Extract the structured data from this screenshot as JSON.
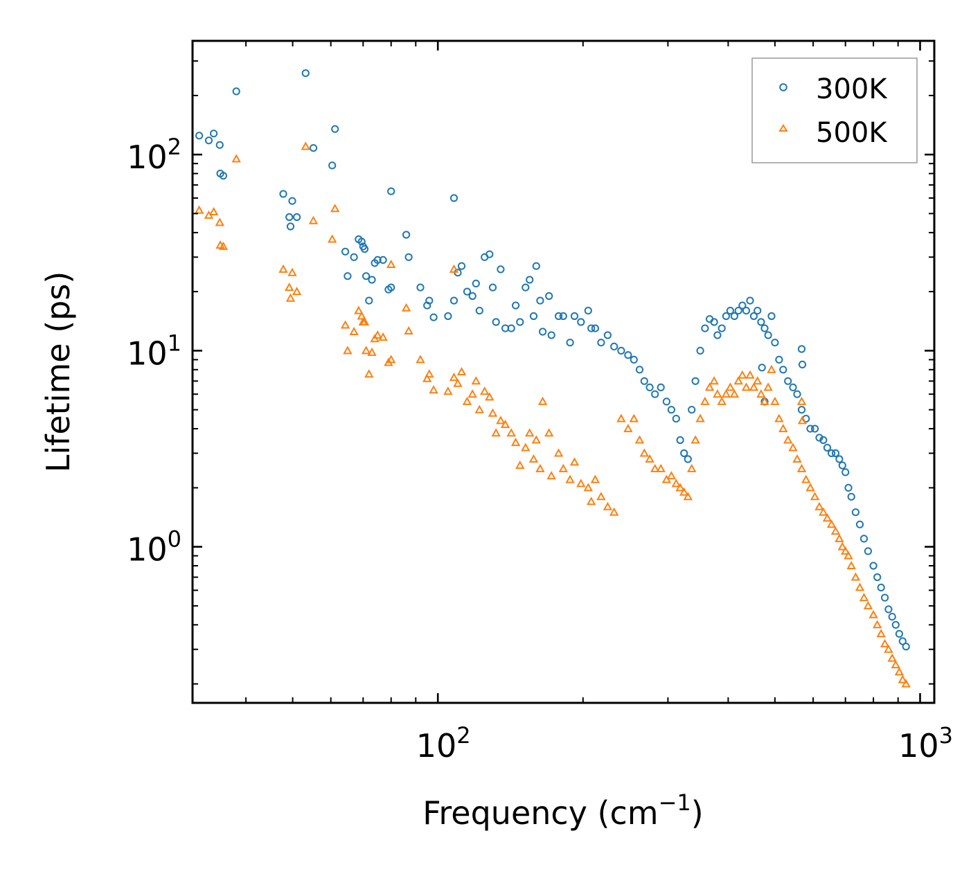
{
  "chart_data": {
    "type": "scatter",
    "title": "",
    "xlabel": "Frequency (cm",
    "xlabel_sup": "−1",
    "xlabel_suffix": ")",
    "ylabel": "Lifetime (ps)",
    "xscale": "log",
    "yscale": "log",
    "xlim": [
      31,
      1070
    ],
    "ylim": [
      0.16,
      380
    ],
    "x_ticks": [
      {
        "value": 100,
        "base": "10",
        "exp": "2"
      },
      {
        "value": 1000,
        "base": "10",
        "exp": "3"
      }
    ],
    "y_ticks": [
      {
        "value": 1,
        "base": "10",
        "exp": "0"
      },
      {
        "value": 10,
        "base": "10",
        "exp": "1"
      },
      {
        "value": 100,
        "base": "10",
        "exp": "2"
      }
    ],
    "legend_position": "top-right",
    "series": [
      {
        "name": "300K",
        "marker": "circle",
        "color": "#1f77b4",
        "points": [
          [
            32,
            125
          ],
          [
            33.5,
            118
          ],
          [
            34.3,
            128
          ],
          [
            35.3,
            112
          ],
          [
            35.4,
            80
          ],
          [
            35.9,
            78
          ],
          [
            38.2,
            210
          ],
          [
            47.8,
            63
          ],
          [
            49.2,
            48
          ],
          [
            49.5,
            43
          ],
          [
            49.9,
            58
          ],
          [
            51,
            48
          ],
          [
            53.2,
            260
          ],
          [
            55.2,
            108
          ],
          [
            60.4,
            88
          ],
          [
            61.2,
            135
          ],
          [
            80,
            65
          ],
          [
            108,
            60
          ],
          [
            64.3,
            32
          ],
          [
            65,
            24
          ],
          [
            67,
            30
          ],
          [
            68.5,
            37
          ],
          [
            69.5,
            36
          ],
          [
            70,
            34
          ],
          [
            70.5,
            33
          ],
          [
            71,
            24
          ],
          [
            72,
            18
          ],
          [
            73,
            23
          ],
          [
            74,
            28
          ],
          [
            75,
            29
          ],
          [
            77,
            29
          ],
          [
            79,
            20.5
          ],
          [
            80,
            21
          ],
          [
            86,
            39
          ],
          [
            87,
            30
          ],
          [
            92,
            21
          ],
          [
            95,
            17
          ],
          [
            96,
            18
          ],
          [
            98,
            14.8
          ],
          [
            105,
            15
          ],
          [
            108,
            18
          ],
          [
            110,
            25
          ],
          [
            112,
            27
          ],
          [
            115,
            20
          ],
          [
            118,
            19
          ],
          [
            120,
            22
          ],
          [
            122,
            16
          ],
          [
            125,
            30
          ],
          [
            128,
            31
          ],
          [
            130,
            21
          ],
          [
            132,
            14
          ],
          [
            135,
            26
          ],
          [
            138,
            13
          ],
          [
            142,
            13
          ],
          [
            145,
            17
          ],
          [
            148,
            14
          ],
          [
            152,
            21
          ],
          [
            155,
            23
          ],
          [
            158,
            15
          ],
          [
            160,
            27
          ],
          [
            163,
            18
          ],
          [
            165,
            12.5
          ],
          [
            170,
            19
          ],
          [
            172,
            12
          ],
          [
            178,
            15
          ],
          [
            182,
            15
          ],
          [
            188,
            11
          ],
          [
            192,
            15
          ],
          [
            198,
            14
          ],
          [
            205,
            16
          ],
          [
            208,
            13
          ],
          [
            212,
            13
          ],
          [
            218,
            11
          ],
          [
            225,
            12
          ],
          [
            232,
            10.5
          ],
          [
            240,
            10
          ],
          [
            248,
            9.5
          ],
          [
            255,
            9
          ],
          [
            262,
            8
          ],
          [
            268,
            7
          ],
          [
            275,
            6.5
          ],
          [
            282,
            6
          ],
          [
            290,
            6.5
          ],
          [
            298,
            5.5
          ],
          [
            305,
            5
          ],
          [
            312,
            4.5
          ],
          [
            318,
            3.5
          ],
          [
            324,
            3
          ],
          [
            330,
            2.8
          ],
          [
            336,
            5
          ],
          [
            342,
            7
          ],
          [
            350,
            10
          ],
          [
            358,
            13
          ],
          [
            366,
            14.5
          ],
          [
            374,
            14
          ],
          [
            380,
            12
          ],
          [
            388,
            13
          ],
          [
            396,
            15
          ],
          [
            404,
            16
          ],
          [
            412,
            15
          ],
          [
            420,
            16
          ],
          [
            428,
            17
          ],
          [
            436,
            16
          ],
          [
            444,
            18
          ],
          [
            452,
            15
          ],
          [
            460,
            16
          ],
          [
            468,
            14
          ],
          [
            476,
            13
          ],
          [
            484,
            12
          ],
          [
            492,
            15
          ],
          [
            500,
            11
          ],
          [
            510,
            9
          ],
          [
            520,
            8
          ],
          [
            532,
            7
          ],
          [
            545,
            6.5
          ],
          [
            556,
            6
          ],
          [
            568,
            5
          ],
          [
            580,
            4.5
          ],
          [
            592,
            4
          ],
          [
            605,
            4
          ],
          [
            618,
            3.6
          ],
          [
            630,
            3.5
          ],
          [
            642,
            3.2
          ],
          [
            655,
            3
          ],
          [
            668,
            3
          ],
          [
            680,
            2.8
          ],
          [
            690,
            2.6
          ],
          [
            700,
            2.4
          ],
          [
            710,
            2
          ],
          [
            720,
            1.8
          ],
          [
            735,
            1.5
          ],
          [
            750,
            1.3
          ],
          [
            765,
            1.1
          ],
          [
            780,
            0.95
          ],
          [
            800,
            0.8
          ],
          [
            815,
            0.7
          ],
          [
            830,
            0.62
          ],
          [
            845,
            0.55
          ],
          [
            860,
            0.48
          ],
          [
            875,
            0.44
          ],
          [
            890,
            0.4
          ],
          [
            905,
            0.36
          ],
          [
            920,
            0.33
          ],
          [
            935,
            0.31
          ],
          [
            568,
            10.2
          ],
          [
            570,
            8.5
          ],
          [
            470,
            8.2
          ],
          [
            476,
            5.5
          ]
        ]
      },
      {
        "name": "500K",
        "marker": "triangle",
        "color": "#ff7f0e",
        "points": [
          [
            32,
            52
          ],
          [
            33.5,
            49
          ],
          [
            34.3,
            51
          ],
          [
            35.3,
            45
          ],
          [
            35.4,
            34.5
          ],
          [
            35.9,
            34
          ],
          [
            38.2,
            95
          ],
          [
            47.8,
            26
          ],
          [
            49.2,
            21
          ],
          [
            49.5,
            18.5
          ],
          [
            49.9,
            25
          ],
          [
            51,
            20
          ],
          [
            53.2,
            110
          ],
          [
            55.2,
            46
          ],
          [
            60.4,
            37
          ],
          [
            61.2,
            53
          ],
          [
            80,
            27.5
          ],
          [
            108,
            26
          ],
          [
            64.3,
            13.5
          ],
          [
            65,
            10
          ],
          [
            67,
            12.5
          ],
          [
            68.5,
            16
          ],
          [
            69.5,
            15
          ],
          [
            70,
            14
          ],
          [
            70.5,
            14
          ],
          [
            71,
            10
          ],
          [
            72,
            7.6
          ],
          [
            73,
            9.8
          ],
          [
            74,
            11.5
          ],
          [
            75,
            12
          ],
          [
            77,
            11.7
          ],
          [
            79,
            8.7
          ],
          [
            80,
            9
          ],
          [
            86,
            16.5
          ],
          [
            87,
            12.6
          ],
          [
            92,
            9
          ],
          [
            95,
            7.2
          ],
          [
            96,
            7.6
          ],
          [
            98,
            6.3
          ],
          [
            105,
            6.2
          ],
          [
            108,
            7.3
          ],
          [
            110,
            6.8
          ],
          [
            112,
            7.8
          ],
          [
            115,
            5.5
          ],
          [
            118,
            6
          ],
          [
            120,
            7
          ],
          [
            122,
            5
          ],
          [
            125,
            6.2
          ],
          [
            128,
            5.8
          ],
          [
            130,
            4.8
          ],
          [
            132,
            3.8
          ],
          [
            135,
            4.4
          ],
          [
            138,
            4.2
          ],
          [
            142,
            3.8
          ],
          [
            145,
            3.4
          ],
          [
            148,
            2.6
          ],
          [
            152,
            3.2
          ],
          [
            155,
            3.8
          ],
          [
            158,
            2.8
          ],
          [
            160,
            3.5
          ],
          [
            163,
            2.5
          ],
          [
            165,
            5.5
          ],
          [
            170,
            3.8
          ],
          [
            172,
            2.3
          ],
          [
            178,
            3
          ],
          [
            182,
            2.5
          ],
          [
            188,
            2.2
          ],
          [
            192,
            2.7
          ],
          [
            198,
            2.1
          ],
          [
            205,
            2
          ],
          [
            208,
            1.7
          ],
          [
            212,
            2.2
          ],
          [
            218,
            1.8
          ],
          [
            225,
            1.6
          ],
          [
            232,
            1.5
          ],
          [
            240,
            4.5
          ],
          [
            248,
            4
          ],
          [
            255,
            4.5
          ],
          [
            262,
            3.5
          ],
          [
            268,
            3
          ],
          [
            275,
            2.8
          ],
          [
            282,
            2.5
          ],
          [
            290,
            2.5
          ],
          [
            298,
            2.2
          ],
          [
            305,
            2.3
          ],
          [
            312,
            2.1
          ],
          [
            318,
            2
          ],
          [
            324,
            1.9
          ],
          [
            330,
            1.8
          ],
          [
            336,
            2.5
          ],
          [
            342,
            3.5
          ],
          [
            350,
            4.5
          ],
          [
            358,
            5.5
          ],
          [
            366,
            6.5
          ],
          [
            374,
            7
          ],
          [
            380,
            6
          ],
          [
            388,
            5.5
          ],
          [
            396,
            6
          ],
          [
            404,
            6.5
          ],
          [
            412,
            6
          ],
          [
            420,
            7
          ],
          [
            428,
            7.5
          ],
          [
            436,
            6.5
          ],
          [
            444,
            7.5
          ],
          [
            452,
            6.5
          ],
          [
            460,
            7
          ],
          [
            468,
            6
          ],
          [
            476,
            5.5
          ],
          [
            484,
            6.5
          ],
          [
            492,
            8
          ],
          [
            500,
            5.5
          ],
          [
            510,
            4.5
          ],
          [
            520,
            4
          ],
          [
            532,
            3.5
          ],
          [
            545,
            3.2
          ],
          [
            556,
            2.8
          ],
          [
            568,
            2.5
          ],
          [
            580,
            2.2
          ],
          [
            592,
            2
          ],
          [
            605,
            1.8
          ],
          [
            618,
            1.6
          ],
          [
            630,
            1.5
          ],
          [
            642,
            1.4
          ],
          [
            655,
            1.3
          ],
          [
            668,
            1.2
          ],
          [
            680,
            1.1
          ],
          [
            690,
            1
          ],
          [
            700,
            0.95
          ],
          [
            710,
            0.9
          ],
          [
            720,
            0.8
          ],
          [
            735,
            0.7
          ],
          [
            750,
            0.62
          ],
          [
            765,
            0.55
          ],
          [
            780,
            0.5
          ],
          [
            800,
            0.45
          ],
          [
            815,
            0.4
          ],
          [
            830,
            0.36
          ],
          [
            845,
            0.32
          ],
          [
            860,
            0.3
          ],
          [
            875,
            0.27
          ],
          [
            890,
            0.25
          ],
          [
            905,
            0.23
          ],
          [
            920,
            0.21
          ],
          [
            935,
            0.2
          ],
          [
            568,
            5.5
          ],
          [
            570,
            4.4
          ]
        ]
      }
    ]
  }
}
